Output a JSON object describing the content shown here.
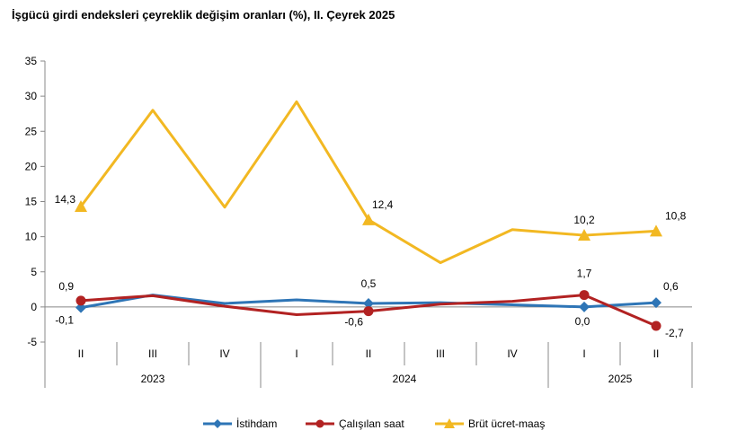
{
  "chart_data": {
    "type": "line",
    "title": "İşgücü girdi endeksleri çeyreklik değişim oranları (%), II. Çeyrek 2025",
    "ylim": [
      -5,
      35
    ],
    "yticks": [
      -5,
      0,
      5,
      10,
      15,
      20,
      25,
      30,
      35
    ],
    "categories": [
      "II",
      "III",
      "IV",
      "I",
      "II",
      "III",
      "IV",
      "I",
      "II"
    ],
    "year_groups": [
      {
        "label": "2023",
        "count": 3
      },
      {
        "label": "2024",
        "count": 4
      },
      {
        "label": "2025",
        "count": 2
      }
    ],
    "grid": false,
    "legend_position": "bottom",
    "series": [
      {
        "name": "İstihdam",
        "color": "#2E75B6",
        "marker": "diamond",
        "values": [
          -0.1,
          1.7,
          0.5,
          1.0,
          0.5,
          0.6,
          0.3,
          0.0,
          0.6
        ],
        "labels": [
          "-0,1",
          null,
          null,
          null,
          "0,5",
          null,
          null,
          "0,0",
          "0,6"
        ]
      },
      {
        "name": "Çalışılan saat",
        "color": "#B22222",
        "marker": "circle",
        "values": [
          0.9,
          1.6,
          0.1,
          -1.1,
          -0.6,
          0.4,
          0.8,
          1.7,
          -2.7
        ],
        "labels": [
          "0,9",
          null,
          null,
          null,
          "-0,6",
          null,
          null,
          "1,7",
          "-2,7"
        ]
      },
      {
        "name": "Brüt ücret-maaş",
        "color": "#F2B822",
        "marker": "triangle",
        "values": [
          14.3,
          28.0,
          14.2,
          29.2,
          12.4,
          6.3,
          11.0,
          10.2,
          10.8
        ],
        "labels": [
          "14,3",
          null,
          null,
          null,
          "12,4",
          null,
          null,
          "10,2",
          "10,8"
        ]
      }
    ]
  }
}
